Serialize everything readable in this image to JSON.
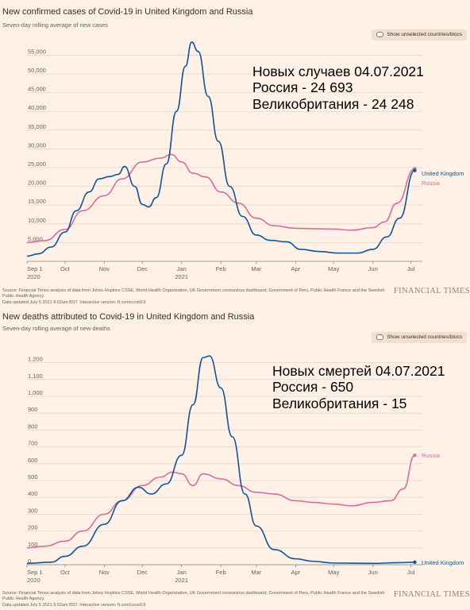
{
  "colors": {
    "background": "#fff1e5",
    "uk": "#0f5499",
    "russia": "#d96d9e",
    "grid": "#e2d5ca",
    "axis_text": "#66605c"
  },
  "toggle_label": "Show unselected countries/blocs",
  "source_text": "Source: Financial Times analysis of data from Johns Hopkins CSSE, World Health Organization, UK Government coronavirus dashboard, Government of Peru, Public Health France and the Swedish Public Health Agency.",
  "updated_text": "Data updated July 5 2021 9:02am BST. Interactive version: ft.com/covid19",
  "ft_logo": "FINANCIAL TIMES",
  "cases": {
    "title": "New confirmed cases of Covid-19 in United Kingdom and Russia",
    "subtitle": "Seven-day rolling average of new cases",
    "overlay": [
      "Новых случаев 04.07.2021",
      "Россия - 24 693",
      "Великобритания - 24 248"
    ]
  },
  "deaths": {
    "title": "New deaths attributed to Covid-19 in United Kingdom and Russia",
    "subtitle": "Seven-day rolling average of new deaths",
    "overlay": [
      "Новых смертей 04.07.2021",
      "Россия - 650",
      "Великобритания - 15"
    ]
  },
  "chart_data": [
    {
      "type": "line",
      "title": "New confirmed cases of Covid-19 in United Kingdom and Russia",
      "subtitle": "Seven-day rolling average of new cases",
      "ylim": [
        0,
        57000
      ],
      "yticks": [
        5000,
        10000,
        15000,
        20000,
        25000,
        30000,
        35000,
        40000,
        45000,
        50000,
        55000
      ],
      "ytick_labels": [
        "5,000",
        "10,000",
        "15,000",
        "20,000",
        "25,000",
        "30,000",
        "35,000",
        "40,000",
        "45,000",
        "50,000",
        "55,000"
      ],
      "xlim": [
        "2020-09-01",
        "2021-07-05"
      ],
      "xticks": [
        {
          "date": "2020-09-01",
          "label": "Sep 1",
          "sub": "2020"
        },
        {
          "date": "2020-10-01",
          "label": "Oct"
        },
        {
          "date": "2020-11-01",
          "label": "Nov"
        },
        {
          "date": "2020-12-01",
          "label": "Dec"
        },
        {
          "date": "2021-01-01",
          "label": "Jan",
          "sub": "2021"
        },
        {
          "date": "2021-02-01",
          "label": "Feb"
        },
        {
          "date": "2021-03-01",
          "label": "Mar"
        },
        {
          "date": "2021-04-01",
          "label": "Apr"
        },
        {
          "date": "2021-05-01",
          "label": "May"
        },
        {
          "date": "2021-06-01",
          "label": "Jun"
        },
        {
          "date": "2021-07-01",
          "label": "Jul"
        }
      ],
      "series": [
        {
          "name": "United Kingdom",
          "color": "#0f5499",
          "x": [
            "2020-09-01",
            "2020-09-10",
            "2020-09-20",
            "2020-10-01",
            "2020-10-10",
            "2020-10-20",
            "2020-10-28",
            "2020-11-05",
            "2020-11-12",
            "2020-11-17",
            "2020-11-25",
            "2020-12-01",
            "2020-12-06",
            "2020-12-12",
            "2020-12-20",
            "2020-12-28",
            "2021-01-04",
            "2021-01-09",
            "2021-01-14",
            "2021-01-22",
            "2021-01-30",
            "2021-02-08",
            "2021-02-18",
            "2021-03-01",
            "2021-03-12",
            "2021-03-25",
            "2021-04-05",
            "2021-04-20",
            "2021-05-05",
            "2021-05-20",
            "2021-06-01",
            "2021-06-12",
            "2021-06-22",
            "2021-07-04"
          ],
          "values": [
            1400,
            2000,
            3800,
            7800,
            13500,
            18500,
            22000,
            22600,
            23200,
            25300,
            20000,
            15200,
            14500,
            17000,
            26000,
            40000,
            52000,
            58500,
            56000,
            44000,
            32000,
            20000,
            12000,
            7000,
            5600,
            5200,
            3200,
            2600,
            2200,
            2200,
            3200,
            6500,
            11500,
            24248
          ]
        },
        {
          "name": "Russia",
          "color": "#d96d9e",
          "x": [
            "2020-09-01",
            "2020-09-15",
            "2020-10-01",
            "2020-10-15",
            "2020-11-01",
            "2020-11-15",
            "2020-12-01",
            "2020-12-15",
            "2020-12-24",
            "2021-01-01",
            "2021-01-10",
            "2021-01-20",
            "2021-02-01",
            "2021-02-15",
            "2021-03-01",
            "2021-03-15",
            "2021-04-01",
            "2021-04-15",
            "2021-05-01",
            "2021-05-15",
            "2021-06-01",
            "2021-06-10",
            "2021-06-20",
            "2021-07-04"
          ],
          "values": [
            5000,
            5500,
            8500,
            13500,
            17500,
            22000,
            26500,
            27500,
            28500,
            26500,
            23500,
            22500,
            18500,
            15500,
            11500,
            9500,
            8800,
            8700,
            8600,
            8300,
            9000,
            10500,
            15500,
            24693
          ]
        }
      ]
    },
    {
      "type": "line",
      "title": "New deaths attributed to Covid-19 in United Kingdom and Russia",
      "subtitle": "Seven-day rolling average of new deaths",
      "ylim": [
        0,
        1250
      ],
      "yticks": [
        0,
        100,
        200,
        300,
        400,
        500,
        600,
        700,
        800,
        900,
        1000,
        1100,
        1200
      ],
      "ytick_labels": [
        "0",
        "100",
        "200",
        "300",
        "400",
        "500",
        "600",
        "700",
        "800",
        "900",
        "1,000",
        "1,100",
        "1,200"
      ],
      "xlim": [
        "2020-09-01",
        "2021-07-05"
      ],
      "xticks": [
        {
          "date": "2020-09-01",
          "label": "Sep 1",
          "sub": "2020"
        },
        {
          "date": "2020-10-01",
          "label": "Oct"
        },
        {
          "date": "2020-11-01",
          "label": "Nov"
        },
        {
          "date": "2020-12-01",
          "label": "Dec"
        },
        {
          "date": "2021-01-01",
          "label": "Jan",
          "sub": "2021"
        },
        {
          "date": "2021-02-01",
          "label": "Feb"
        },
        {
          "date": "2021-03-01",
          "label": "Mar"
        },
        {
          "date": "2021-04-01",
          "label": "Apr"
        },
        {
          "date": "2021-05-01",
          "label": "May"
        },
        {
          "date": "2021-06-01",
          "label": "Jun"
        },
        {
          "date": "2021-07-01",
          "label": "Jul"
        }
      ],
      "series": [
        {
          "name": "United Kingdom",
          "color": "#0f5499",
          "x": [
            "2020-09-01",
            "2020-09-20",
            "2020-10-01",
            "2020-10-15",
            "2020-11-01",
            "2020-11-15",
            "2020-11-28",
            "2020-12-08",
            "2020-12-20",
            "2021-01-01",
            "2021-01-10",
            "2021-01-18",
            "2021-01-23",
            "2021-02-01",
            "2021-02-10",
            "2021-02-20",
            "2021-03-01",
            "2021-03-15",
            "2021-04-01",
            "2021-04-15",
            "2021-05-01",
            "2021-06-01",
            "2021-06-20",
            "2021-07-04"
          ],
          "values": [
            8,
            15,
            50,
            110,
            240,
            380,
            460,
            420,
            480,
            650,
            950,
            1230,
            1240,
            1050,
            760,
            420,
            230,
            90,
            35,
            20,
            10,
            8,
            12,
            15
          ]
        },
        {
          "name": "Russia",
          "color": "#d96d9e",
          "x": [
            "2020-09-01",
            "2020-09-15",
            "2020-10-01",
            "2020-10-15",
            "2020-11-01",
            "2020-11-15",
            "2020-12-01",
            "2020-12-15",
            "2020-12-25",
            "2021-01-01",
            "2021-01-10",
            "2021-01-18",
            "2021-02-01",
            "2021-02-15",
            "2021-03-01",
            "2021-03-15",
            "2021-04-01",
            "2021-04-15",
            "2021-05-01",
            "2021-05-15",
            "2021-06-01",
            "2021-06-15",
            "2021-06-25",
            "2021-07-04"
          ],
          "values": [
            100,
            110,
            140,
            200,
            300,
            380,
            470,
            520,
            550,
            540,
            470,
            540,
            510,
            470,
            430,
            420,
            380,
            370,
            360,
            350,
            370,
            380,
            450,
            650
          ]
        }
      ]
    }
  ]
}
